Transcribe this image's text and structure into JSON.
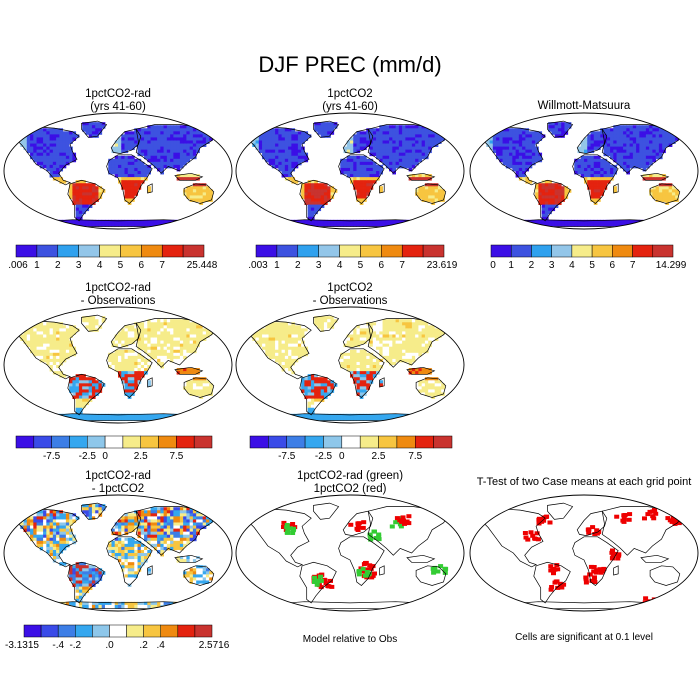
{
  "title": "DJF PREC (mm/d)",
  "palette_abs": [
    "#3b0fe6",
    "#3d52e0",
    "#2fa1ee",
    "#93c6e9",
    "#f6ec8a",
    "#f7c540",
    "#ef8a10",
    "#e4230f",
    "#c9332f"
  ],
  "palette_diff": [
    "#3b0fe6",
    "#3a4be8",
    "#3d7ee6",
    "#35a7ef",
    "#8ec7ea",
    "#ffffff",
    "#f6ec8a",
    "#f7c540",
    "#ef8a10",
    "#e4230f",
    "#c9332f"
  ],
  "panels": [
    {
      "id": "p1",
      "title_lines": [
        "1pctCO2-rad",
        "(yrs 41-60)"
      ],
      "kind": "abs",
      "colorbar": {
        "scheme": "abs",
        "labels": [
          ".006",
          "1",
          "2",
          "3",
          "4",
          "5",
          "6",
          "7",
          "25.448"
        ]
      }
    },
    {
      "id": "p2",
      "title_lines": [
        "1pctCO2",
        "(yrs 41-60)"
      ],
      "kind": "abs",
      "colorbar": {
        "scheme": "abs",
        "labels": [
          ".003",
          "1",
          "2",
          "3",
          "4",
          "5",
          "6",
          "7",
          "23.619"
        ]
      }
    },
    {
      "id": "p3",
      "title_lines": [
        "Willmott-Matsuura"
      ],
      "kind": "abs",
      "colorbar": {
        "scheme": "abs",
        "labels": [
          "0",
          "1",
          "2",
          "3",
          "4",
          "5",
          "6",
          "7",
          "14.299"
        ]
      }
    },
    {
      "id": "p4",
      "title_lines": [
        "1pctCO2-rad",
        "- Observations"
      ],
      "kind": "diff",
      "colorbar": {
        "scheme": "diff",
        "labels": [
          "-7.5",
          "-2.5",
          "0",
          "2.5",
          "7.5"
        ]
      }
    },
    {
      "id": "p5",
      "title_lines": [
        "1pctCO2",
        "- Observations"
      ],
      "kind": "diff",
      "colorbar": {
        "scheme": "diff",
        "labels": [
          "-7.5",
          "-2.5",
          "0",
          "2.5",
          "7.5"
        ]
      }
    },
    {
      "id": "p6",
      "title_lines": [
        "1pctCO2-rad",
        "- 1pctCO2"
      ],
      "kind": "diff2",
      "colorbar": {
        "scheme": "diff",
        "labels": [
          "-3.1315",
          "-.4",
          "-.2",
          ".0",
          ".2",
          ".4",
          "2.5716"
        ]
      }
    },
    {
      "id": "p7",
      "title_lines": [
        "1pctCO2-rad (green)",
        "1pctCO2 (red)"
      ],
      "kind": "mask",
      "note": "Model relative to Obs"
    },
    {
      "id": "p8",
      "title_lines": [
        "T-Test of two Case means at each grid point"
      ],
      "kind": "mask2",
      "note": "Cells are significant at 0.1 level"
    }
  ],
  "chart_data": [
    {
      "type": "heatmap",
      "title": "1pctCO2-rad (yrs 41-60)",
      "colorbar_labels": [
        ".006",
        "1",
        "2",
        "3",
        "4",
        "5",
        "6",
        "7",
        "25.448"
      ]
    },
    {
      "type": "heatmap",
      "title": "1pctCO2 (yrs 41-60)",
      "colorbar_labels": [
        ".003",
        "1",
        "2",
        "3",
        "4",
        "5",
        "6",
        "7",
        "23.619"
      ]
    },
    {
      "type": "heatmap",
      "title": "Willmott-Matsuura",
      "colorbar_labels": [
        "0",
        "1",
        "2",
        "3",
        "4",
        "5",
        "6",
        "7",
        "14.299"
      ]
    },
    {
      "type": "heatmap",
      "title": "1pctCO2-rad - Observations",
      "colorbar_labels": [
        "-7.5",
        "-2.5",
        "0",
        "2.5",
        "7.5"
      ]
    },
    {
      "type": "heatmap",
      "title": "1pctCO2 - Observations",
      "colorbar_labels": [
        "-7.5",
        "-2.5",
        "0",
        "2.5",
        "7.5"
      ]
    },
    {
      "type": "heatmap",
      "title": "1pctCO2-rad - 1pctCO2",
      "colorbar_labels": [
        "-3.1315",
        "-.4",
        "-.2",
        ".0",
        ".2",
        ".4",
        "2.5716"
      ]
    },
    {
      "type": "heatmap",
      "title": "1pctCO2-rad (green) 1pctCO2 (red)",
      "note": "Model relative to Obs"
    },
    {
      "type": "heatmap",
      "title": "T-Test of two Case means at each grid point",
      "note": "Cells are significant at 0.1 level"
    }
  ]
}
